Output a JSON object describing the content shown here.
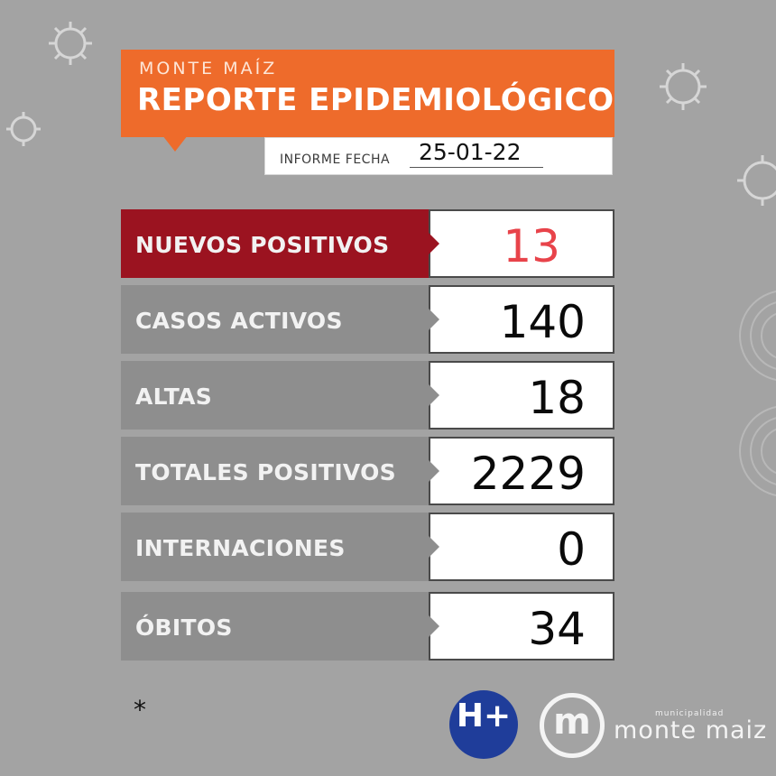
{
  "header": {
    "subtitle": "MONTE MAÍZ",
    "title": "REPORTE EPIDEMIOLÓGICO",
    "date_label": "INFORME FECHA",
    "date_value": "25-01-22"
  },
  "rows": [
    {
      "label": "NUEVOS POSITIVOS",
      "value": "13"
    },
    {
      "label": "CASOS ACTIVOS",
      "value": "140"
    },
    {
      "label": "ALTAS",
      "value": "18"
    },
    {
      "label": "TOTALES POSITIVOS",
      "value": "2229"
    },
    {
      "label": "INTERNACIONES",
      "value": "0"
    },
    {
      "label": "ÓBITOS",
      "value": "34"
    }
  ],
  "footnote": "*",
  "logos": {
    "hplus_text": "H+",
    "brand_small": "municipalidad",
    "brand_name": "monte maiz",
    "m_glyph": "m"
  },
  "colors": {
    "background": "#a3a3a3",
    "header": "#ee6b2b",
    "highlight": "#9b1320",
    "row_label": "#8e8e8e",
    "highlight_value": "#e8434a"
  },
  "icons": [
    "virus-icon",
    "h-plus-logo",
    "monte-maiz-logo"
  ]
}
